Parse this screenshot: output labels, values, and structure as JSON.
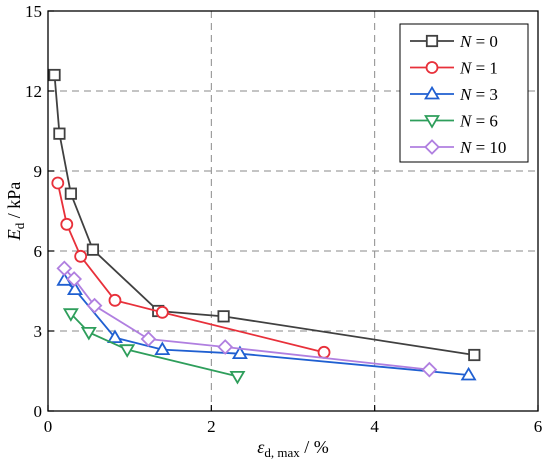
{
  "chart_data": {
    "type": "line",
    "xlabel": "εd, max / %",
    "ylabel": "Ed / kPa",
    "xlim": [
      0,
      6
    ],
    "ylim": [
      0,
      15
    ],
    "xticks": [
      0,
      2,
      4,
      6
    ],
    "yticks": [
      0,
      3,
      6,
      9,
      12,
      15
    ],
    "grid": true,
    "grid_style": "dashed",
    "legend_position": "top-right",
    "series": [
      {
        "name": "N = 0",
        "color": "#404040",
        "marker": "square",
        "x": [
          0.08,
          0.14,
          0.28,
          0.55,
          1.35,
          2.15,
          5.22
        ],
        "y": [
          12.6,
          10.4,
          8.15,
          6.05,
          3.75,
          3.55,
          2.1
        ]
      },
      {
        "name": "N = 1",
        "color": "#e8303a",
        "marker": "circle",
        "x": [
          0.12,
          0.23,
          0.4,
          0.82,
          1.4,
          3.38
        ],
        "y": [
          8.55,
          7.0,
          5.8,
          4.15,
          3.7,
          2.2
        ]
      },
      {
        "name": "N = 3",
        "color": "#1f5fd1",
        "marker": "triangle-up",
        "x": [
          0.2,
          0.33,
          0.82,
          1.4,
          2.35,
          5.15
        ],
        "y": [
          4.9,
          4.55,
          2.75,
          2.3,
          2.15,
          1.35
        ]
      },
      {
        "name": "N = 6",
        "color": "#2e9e5b",
        "marker": "triangle-down",
        "x": [
          0.28,
          0.5,
          0.97,
          2.32
        ],
        "y": [
          3.65,
          2.95,
          2.3,
          1.3
        ]
      },
      {
        "name": "N = 10",
        "color": "#b07fe0",
        "marker": "diamond",
        "x": [
          0.2,
          0.32,
          0.57,
          1.23,
          2.17,
          4.67
        ],
        "y": [
          5.35,
          4.95,
          3.95,
          2.7,
          2.4,
          1.55
        ]
      }
    ]
  }
}
